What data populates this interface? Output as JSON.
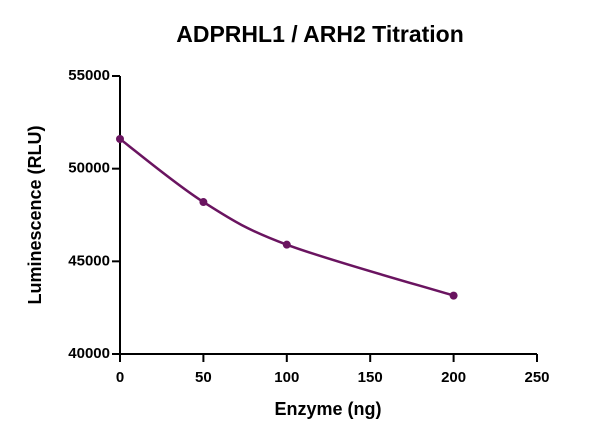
{
  "chart_data": {
    "type": "line",
    "title": "ADPRHL1 / ARH2 Titration",
    "x_label": "Enzyme (ng)",
    "y_label": "Luminescence (RLU)",
    "x": [
      0,
      50,
      100,
      200
    ],
    "series": [
      {
        "name": "ADPRHL1 / ARH2",
        "color": "#6a1460",
        "values": [
          51600,
          48200,
          45900,
          43150
        ]
      }
    ],
    "xlim": [
      0,
      250
    ],
    "xticks": [
      0,
      50,
      100,
      150,
      200,
      250
    ],
    "ylim": [
      40000,
      55000
    ],
    "yticks": [
      40000,
      45000,
      50000,
      55000
    ],
    "grid": false
  }
}
